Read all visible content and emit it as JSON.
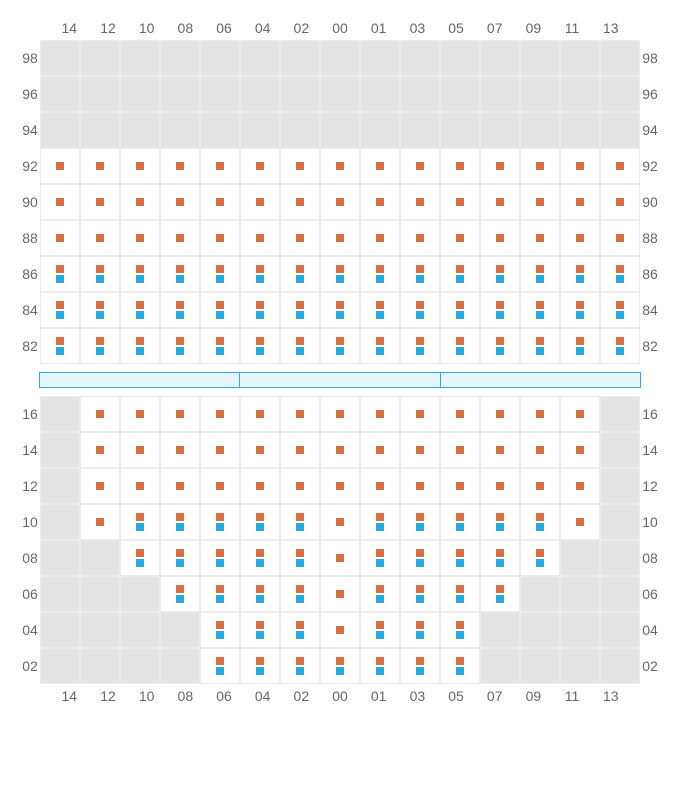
{
  "cols": [
    "14",
    "12",
    "10",
    "08",
    "06",
    "04",
    "02",
    "00",
    "01",
    "03",
    "05",
    "07",
    "09",
    "11",
    "13"
  ],
  "topRows": [
    "98",
    "96",
    "94",
    "92",
    "90",
    "88",
    "86",
    "84",
    "82"
  ],
  "botRows": [
    "16",
    "14",
    "12",
    "10",
    "08",
    "06",
    "04",
    "02"
  ],
  "colors": {
    "orange": "#d87041",
    "blue": "#29abe2",
    "empty": "#e3e3e3",
    "active": "#ffffff",
    "grid": "#ebebeb"
  },
  "top": [
    [
      "e",
      "e",
      "e",
      "e",
      "e",
      "e",
      "e",
      "e",
      "e",
      "e",
      "e",
      "e",
      "e",
      "e",
      "e"
    ],
    [
      "e",
      "e",
      "e",
      "e",
      "e",
      "e",
      "e",
      "e",
      "e",
      "e",
      "e",
      "e",
      "e",
      "e",
      "e"
    ],
    [
      "e",
      "e",
      "e",
      "e",
      "e",
      "e",
      "e",
      "e",
      "e",
      "e",
      "e",
      "e",
      "e",
      "e",
      "e"
    ],
    [
      "o",
      "o",
      "o",
      "o",
      "o",
      "o",
      "o",
      "o",
      "o",
      "o",
      "o",
      "o",
      "o",
      "o",
      "o"
    ],
    [
      "o",
      "o",
      "o",
      "o",
      "o",
      "o",
      "o",
      "o",
      "o",
      "o",
      "o",
      "o",
      "o",
      "o",
      "o"
    ],
    [
      "o",
      "o",
      "o",
      "o",
      "o",
      "o",
      "o",
      "o",
      "o",
      "o",
      "o",
      "o",
      "o",
      "o",
      "o"
    ],
    [
      "ob",
      "ob",
      "ob",
      "ob",
      "ob",
      "ob",
      "ob",
      "ob",
      "ob",
      "ob",
      "ob",
      "ob",
      "ob",
      "ob",
      "ob"
    ],
    [
      "ob",
      "ob",
      "ob",
      "ob",
      "ob",
      "ob",
      "ob",
      "ob",
      "ob",
      "ob",
      "ob",
      "ob",
      "ob",
      "ob",
      "ob"
    ],
    [
      "ob",
      "ob",
      "ob",
      "ob",
      "ob",
      "ob",
      "ob",
      "ob",
      "ob",
      "ob",
      "ob",
      "ob",
      "ob",
      "ob",
      "ob"
    ]
  ],
  "bot": [
    [
      "e",
      "o",
      "o",
      "o",
      "o",
      "o",
      "o",
      "o",
      "o",
      "o",
      "o",
      "o",
      "o",
      "o",
      "e"
    ],
    [
      "e",
      "o",
      "o",
      "o",
      "o",
      "o",
      "o",
      "o",
      "o",
      "o",
      "o",
      "o",
      "o",
      "o",
      "e"
    ],
    [
      "e",
      "o",
      "o",
      "o",
      "o",
      "o",
      "o",
      "o",
      "o",
      "o",
      "o",
      "o",
      "o",
      "o",
      "e"
    ],
    [
      "e",
      "o",
      "ob",
      "ob",
      "ob",
      "ob",
      "ob",
      "o",
      "ob",
      "ob",
      "ob",
      "ob",
      "ob",
      "o",
      "e"
    ],
    [
      "e",
      "e",
      "ob",
      "ob",
      "ob",
      "ob",
      "ob",
      "o",
      "ob",
      "ob",
      "ob",
      "ob",
      "ob",
      "e",
      "e"
    ],
    [
      "e",
      "e",
      "e",
      "ob",
      "ob",
      "ob",
      "ob",
      "o",
      "ob",
      "ob",
      "ob",
      "ob",
      "e",
      "e",
      "e"
    ],
    [
      "e",
      "e",
      "e",
      "e",
      "ob",
      "ob",
      "ob",
      "o",
      "ob",
      "ob",
      "ob",
      "e",
      "e",
      "e",
      "e"
    ],
    [
      "e",
      "e",
      "e",
      "e",
      "ob",
      "ob",
      "ob",
      "ob",
      "ob",
      "ob",
      "ob",
      "e",
      "e",
      "e",
      "e"
    ]
  ]
}
